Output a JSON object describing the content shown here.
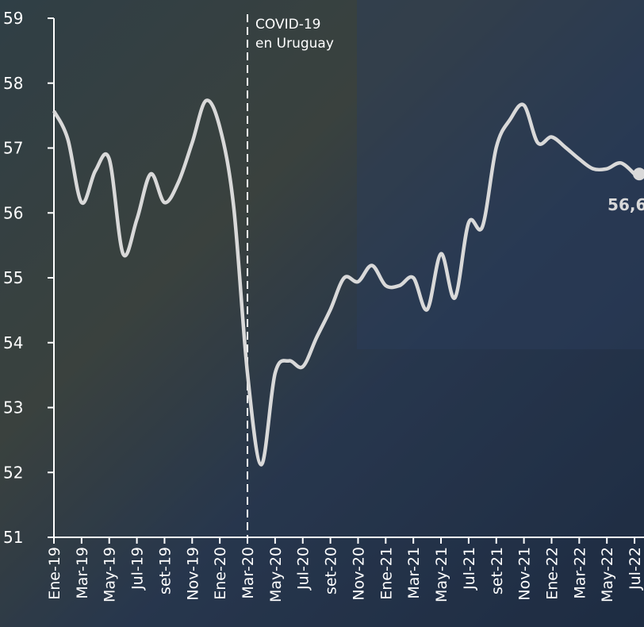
{
  "chart_data": {
    "type": "line",
    "categories": [
      "Ene-19",
      null,
      "Mar-19",
      null,
      "May-19",
      null,
      "Jul-19",
      null,
      "set-19",
      null,
      "Nov-19",
      null,
      "Ene-20",
      null,
      "Mar-20",
      null,
      "May-20",
      null,
      "Jul-20",
      null,
      "set-20",
      null,
      "Nov-20",
      null,
      "Ene-21",
      null,
      "Mar-21",
      null,
      "May-21",
      null,
      "Jul-21",
      null,
      "set-21",
      null,
      "Nov-21",
      null,
      "Ene-22",
      null,
      "Mar-22",
      null,
      "May-22",
      null,
      "Jul-22"
    ],
    "series": [
      {
        "color": "#d9d9d9",
        "values": [
          57.57,
          57.14,
          56.16,
          56.65,
          56.83,
          55.37,
          55.9,
          56.6,
          56.16,
          56.47,
          57.08,
          57.73,
          57.32,
          56.1,
          53.53,
          52.12,
          53.53,
          53.72,
          53.63,
          54.08,
          54.51,
          55.0,
          54.94,
          55.19,
          54.88,
          54.88,
          55.0,
          54.51,
          55.37,
          54.69,
          55.85,
          55.79,
          57.01,
          57.44,
          57.66,
          57.08,
          57.17,
          57.01,
          56.83,
          56.68,
          56.68,
          56.77,
          56.6
        ],
        "value_labels": [
          null,
          null,
          null,
          null,
          null,
          null,
          null,
          null,
          null,
          null,
          null,
          null,
          null,
          null,
          null,
          null,
          null,
          null,
          null,
          null,
          null,
          null,
          null,
          null,
          null,
          null,
          null,
          null,
          null,
          null,
          null,
          null,
          null,
          null,
          null,
          null,
          null,
          null,
          null,
          null,
          null,
          null,
          "56,6"
        ]
      }
    ],
    "ylim": [
      51,
      59
    ],
    "yticks": [
      51,
      52,
      53,
      54,
      55,
      56,
      57,
      58,
      59
    ],
    "annotation": {
      "lines": [
        "COVID-19",
        "en Uruguay"
      ],
      "at": "Mar-20"
    }
  }
}
